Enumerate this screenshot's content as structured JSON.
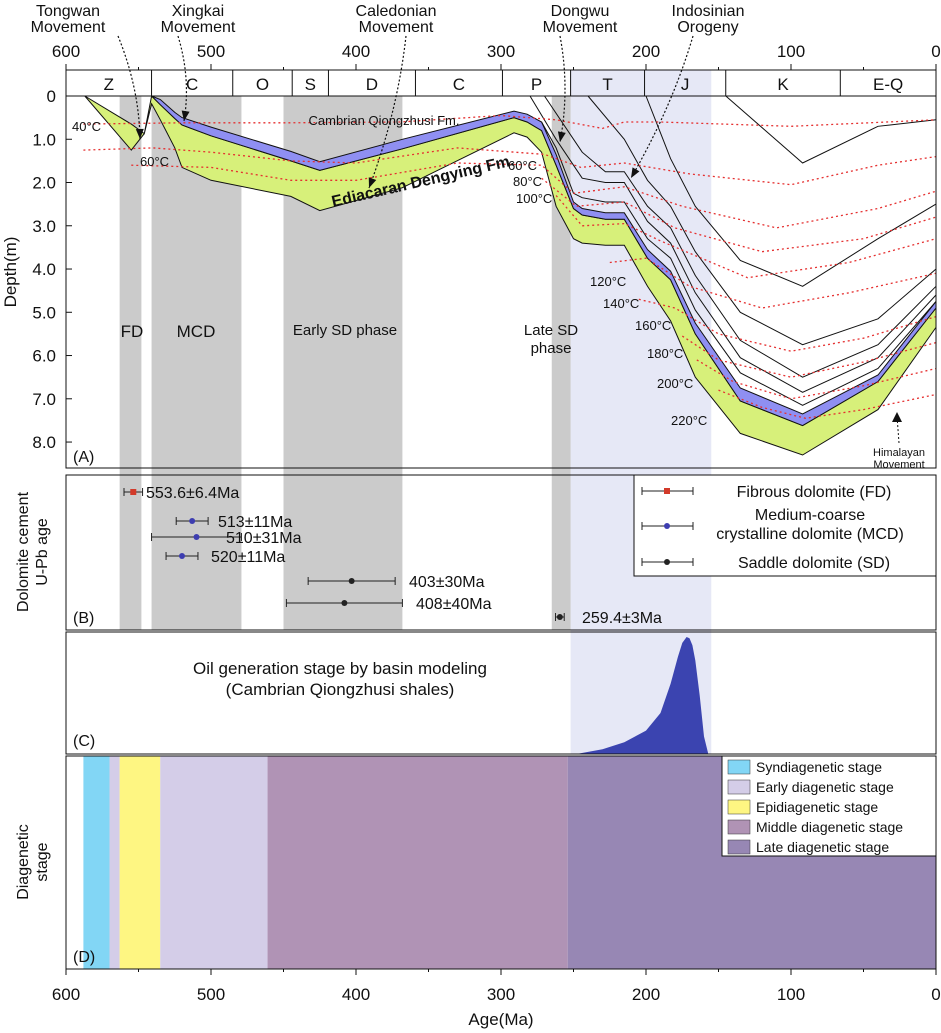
{
  "axes": {
    "top_ticks": [
      "600",
      "500",
      "400",
      "300",
      "200",
      "100",
      "0"
    ],
    "bottom_ticks": [
      "600",
      "500",
      "400",
      "300",
      "200",
      "100",
      "0"
    ],
    "xlabel": "Age(Ma)",
    "x_range": [
      600,
      0
    ]
  },
  "periods": [
    {
      "label": "Z",
      "start": 600,
      "end": 541
    },
    {
      "label": "C",
      "start": 541,
      "end": 485
    },
    {
      "label": "O",
      "start": 485,
      "end": 444
    },
    {
      "label": "S",
      "start": 444,
      "end": 419
    },
    {
      "label": "D",
      "start": 419,
      "end": 359
    },
    {
      "label": "C",
      "start": 359,
      "end": 299
    },
    {
      "label": "P",
      "start": 299,
      "end": 252
    },
    {
      "label": "T",
      "start": 252,
      "end": 201
    },
    {
      "label": "J",
      "start": 201,
      "end": 145
    },
    {
      "label": "K",
      "start": 145,
      "end": 66
    },
    {
      "label": "E-Q",
      "start": 66,
      "end": 0
    }
  ],
  "movements": [
    {
      "label": "Tongwan\nMovement",
      "ax": 563,
      "ay": -4,
      "tx": 547,
      "ty": 0.95
    },
    {
      "label": "Xingkai\nMovement",
      "ax": 520,
      "ay": -4,
      "tx": 518,
      "ty": 0.5
    },
    {
      "label": "Caledonian\nMovement",
      "ax": 381,
      "ay": -4,
      "tx": 390,
      "ty": 1.85
    },
    {
      "label": "Dongwu\nMovement",
      "ax": 262,
      "ay": -4,
      "tx": 268,
      "ty": 1.05
    },
    {
      "label": "Indosinian\nOrogeny",
      "ax": 200,
      "ay": -4,
      "tx": 210,
      "ty": 1.7
    }
  ],
  "panel_a": {
    "label": "(A)",
    "ylabel": "Depth(m)",
    "y_ticks": [
      "0",
      "1.0",
      "2.0",
      "3.0",
      "4.0",
      "5.0",
      "6.0",
      "7.0",
      "8.0"
    ],
    "y_range": [
      0,
      8.6
    ],
    "formation_labels": [
      "Cambrian Qiongzhusi Fm.",
      "Ediacaran Dengying Fm."
    ],
    "phase_labels": [
      "FD",
      "MCD",
      "Early SD phase",
      "Late SD\nphase"
    ],
    "temp_labels": [
      "40°C",
      "60°C",
      "60°C",
      "80°C",
      "100°C",
      "120°C",
      "140°C",
      "160°C",
      "180°C",
      "200°C",
      "220°C"
    ],
    "himalayan_label": "Himalayan\nMovement",
    "shaded_phases": [
      {
        "name": "FD",
        "start": 563,
        "end": 548
      },
      {
        "name": "MCD",
        "start": 541,
        "end": 479
      },
      {
        "name": "Early SD",
        "start": 450,
        "end": 368
      },
      {
        "name": "Late SD",
        "start": 265,
        "end": 252
      }
    ],
    "highlight_band": {
      "start": 252,
      "end": 155,
      "color": "#e6e8f6"
    },
    "colors": {
      "dengying": "#d7f07a",
      "qiongzhusi": "#8f8ff2",
      "phase_gray": "#cbcbcb",
      "isotherm": "#e53030"
    }
  },
  "panel_b": {
    "label": "(B)",
    "ylabel": "Dolomite cement\nU-Pb age",
    "legend": [
      "Fibrous dolomite (FD)",
      "Medium-coarse\ncrystalline dolomite (MCD)",
      "Saddle dolomite (SD)"
    ],
    "legend_colors": [
      "#d23a2a",
      "#3d3db0",
      "#222222"
    ]
  },
  "panel_c": {
    "label": "(C)",
    "title": "Oil generation stage by basin modeling\n(Cambrian Qiongzhusi shales)",
    "fill_color": "#3b44b0"
  },
  "panel_d": {
    "label": "(D)",
    "ylabel": "Diagenetic\nstage",
    "stages": [
      {
        "name": "Syndiagenetic stage",
        "color": "#82d6f5",
        "start": 588,
        "end": 570
      },
      {
        "name": "Early diagenetic stage",
        "color": "#d4cde8",
        "start": 570,
        "end": 563
      },
      {
        "name": "Epidiagenetic stage",
        "color": "#fef682",
        "start": 563,
        "end": 535
      },
      {
        "name": "Early diagenetic stage",
        "color": "#d4cde8",
        "start": 535,
        "end": 461
      },
      {
        "name": "Middle diagenetic stage",
        "color": "#b093b5",
        "start": 461,
        "end": 254
      },
      {
        "name": "Late diagenetic stage",
        "color": "#9787b4",
        "start": 254,
        "end": 0
      }
    ],
    "legend": [
      "Syndiagenetic stage",
      "Early diagenetic stage",
      "Epidiagenetic stage",
      "Middle diagenetic stage",
      "Late diagenetic stage"
    ],
    "legend_colors": [
      "#82d6f5",
      "#d4cde8",
      "#fef682",
      "#b093b5",
      "#9787b4"
    ]
  },
  "chart_data": [
    {
      "type": "area",
      "title": "",
      "xlabel": "Age(Ma)",
      "ylabel": "Depth(m)",
      "xlim": [
        600,
        0
      ],
      "ylim": [
        8.6,
        0
      ],
      "series": [
        {
          "name": "Ediacaran Dengying Fm.",
          "x": [
            587,
            555,
            546,
            541,
            535,
            525,
            520,
            500,
            445,
            425,
            368,
            291,
            282,
            272,
            262,
            250,
            244,
            228,
            215,
            199,
            183,
            166,
            135,
            92,
            40,
            0
          ],
          "top": [
            0,
            0.65,
            0.87,
            0,
            0.2,
            0.52,
            0.67,
            0.92,
            1.5,
            1.72,
            1.22,
            0.5,
            0.6,
            0.8,
            1.6,
            2.6,
            2.75,
            2.85,
            2.85,
            3.75,
            4.25,
            5.5,
            7.05,
            7.62,
            6.6,
            4.9
          ],
          "bottom": [
            0,
            1.25,
            0.87,
            0.18,
            0.55,
            1.2,
            1.65,
            1.95,
            2.32,
            2.65,
            2.12,
            0.85,
            0.95,
            1.3,
            2.55,
            3.3,
            3.4,
            3.45,
            3.45,
            4.4,
            5.2,
            6.5,
            7.8,
            8.3,
            7.25,
            5.35
          ]
        },
        {
          "name": "Cambrian Qiongzhusi Fm.",
          "x": [
            541,
            535,
            525,
            520,
            500,
            445,
            425,
            368,
            291,
            282,
            272,
            262,
            250,
            244,
            228,
            215,
            199,
            183,
            166,
            135,
            92,
            40,
            0
          ],
          "top": [
            0,
            0.08,
            0.38,
            0.5,
            0.72,
            1.28,
            1.52,
            1.0,
            0.35,
            0.42,
            0.6,
            1.35,
            2.45,
            2.6,
            2.7,
            2.7,
            3.55,
            4.05,
            5.25,
            6.75,
            7.35,
            6.45,
            4.75
          ],
          "bottom": [
            0,
            0.2,
            0.52,
            0.67,
            0.92,
            1.5,
            1.72,
            1.22,
            0.5,
            0.6,
            0.8,
            1.6,
            2.6,
            2.75,
            2.85,
            2.85,
            3.75,
            4.25,
            5.5,
            7.05,
            7.62,
            6.6,
            4.9
          ]
        },
        {
          "name": "burial lines",
          "lines": [
            {
              "x": [
                272,
                262,
                250,
                244,
                228,
                215,
                199,
                183,
                166,
                135,
                92,
                40,
                0
              ],
              "y": [
                0.6,
                1.2,
                2.25,
                2.35,
                2.45,
                2.45,
                3.3,
                3.75,
                4.95,
                6.4,
                7.15,
                6.3,
                4.75
              ]
            },
            {
              "x": [
                280,
                262,
                244,
                228,
                215,
                199,
                183,
                166,
                135,
                92,
                40,
                0
              ],
              "y": [
                0,
                1.0,
                1.9,
                2.0,
                2.0,
                2.9,
                3.4,
                4.55,
                6.05,
                6.85,
                6.05,
                4.6
              ]
            },
            {
              "x": [
                270,
                244,
                228,
                215,
                199,
                183,
                166,
                135,
                92,
                40,
                0
              ],
              "y": [
                0,
                1.3,
                1.75,
                1.75,
                2.55,
                3.05,
                4.15,
                5.65,
                6.5,
                5.75,
                4.4
              ]
            },
            {
              "x": [
                240,
                215,
                199,
                183,
                166,
                135,
                92,
                40,
                0
              ],
              "y": [
                0,
                1.0,
                1.95,
                2.55,
                3.6,
                5.0,
                5.75,
                5.15,
                4.0
              ]
            },
            {
              "x": [
                200,
                183,
                166,
                135,
                92,
                40,
                0
              ],
              "y": [
                0,
                1.45,
                2.55,
                3.8,
                4.4,
                3.3,
                2.5
              ]
            },
            {
              "x": [
                145,
                92,
                40,
                0
              ],
              "y": [
                0,
                1.55,
                0.7,
                0.55
              ]
            }
          ]
        }
      ]
    },
    {
      "type": "scatter",
      "title": "",
      "xlabel": "Age(Ma)",
      "ylabel": "Dolomite cement U-Pb age",
      "series": [
        {
          "name": "Fibrous dolomite (FD)",
          "points": [
            {
              "x": 553.6,
              "err": 6.4,
              "label": "553.6±6.4Ma"
            }
          ]
        },
        {
          "name": "Medium-coarse crystalline dolomite (MCD)",
          "points": [
            {
              "x": 513,
              "err": 11,
              "label": "513±11Ma"
            },
            {
              "x": 510,
              "err": 31,
              "label": "510±31Ma"
            },
            {
              "x": 520,
              "err": 11,
              "label": "520±11Ma"
            }
          ]
        },
        {
          "name": "Saddle dolomite (SD)",
          "points": [
            {
              "x": 403,
              "err": 30,
              "label": "403±30Ma"
            },
            {
              "x": 408,
              "err": 40,
              "label": "408±40Ma"
            },
            {
              "x": 259.4,
              "err": 3,
              "label": "259.4±3Ma"
            }
          ]
        }
      ]
    },
    {
      "type": "area",
      "title": "Oil generation stage by basin modeling (Cambrian Qiongzhusi shales)",
      "x": [
        248,
        230,
        215,
        200,
        190,
        183,
        178,
        175,
        172,
        170,
        168,
        166,
        163,
        160,
        157
      ],
      "y": [
        0,
        0.04,
        0.1,
        0.2,
        0.35,
        0.6,
        0.83,
        0.95,
        1.0,
        0.99,
        0.93,
        0.8,
        0.5,
        0.15,
        0
      ]
    }
  ]
}
